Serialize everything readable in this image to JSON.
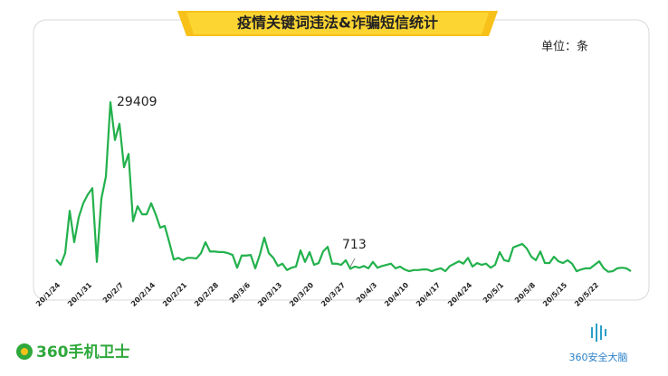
{
  "chart_data": {
    "type": "line",
    "title": "疫情关键词违法&诈骗短信统计",
    "unit": "单位：条",
    "annotations": [
      "29409",
      "713"
    ],
    "logos": [
      "360手机卫士",
      "360安全大脑"
    ],
    "categories": [
      "20/1/24",
      null,
      null,
      null,
      null,
      null,
      null,
      "20/1/31",
      null,
      null,
      null,
      null,
      null,
      null,
      "20/2/7",
      null,
      null,
      null,
      null,
      null,
      null,
      "20/2/14",
      null,
      null,
      null,
      null,
      null,
      null,
      "20/2/21",
      null,
      null,
      null,
      null,
      null,
      null,
      "20/2/28",
      null,
      null,
      null,
      null,
      null,
      null,
      "20/3/6",
      null,
      null,
      null,
      null,
      null,
      null,
      "20/3/13",
      null,
      null,
      null,
      null,
      null,
      null,
      "20/3/20",
      null,
      null,
      null,
      null,
      null,
      null,
      "20/3/27",
      null,
      null,
      null,
      null,
      null,
      null,
      "20/4/3",
      null,
      null,
      null,
      null,
      null,
      null,
      "20/4/10",
      null,
      null,
      null,
      null,
      null,
      null,
      "20/4/17",
      null,
      null,
      null,
      null,
      null,
      null,
      "20/4/24",
      null,
      null,
      null,
      null,
      null,
      null,
      "20/5/1",
      null,
      null,
      null,
      null,
      null,
      null,
      "20/5/8",
      null,
      null,
      null,
      null,
      null,
      null,
      "20/5/15",
      null,
      null,
      null,
      null,
      null,
      null,
      "20/5/22",
      null,
      null,
      null,
      null,
      null,
      null,
      null,
      null
    ],
    "values": [
      2300,
      1400,
      3400,
      10700,
      5300,
      9600,
      12000,
      13500,
      14600,
      1900,
      12800,
      16600,
      29409,
      22900,
      25700,
      18200,
      20500,
      8900,
      11500,
      10100,
      10100,
      12000,
      10100,
      7800,
      8100,
      5300,
      2300,
      2600,
      2200,
      2600,
      2600,
      2500,
      3400,
      5300,
      3700,
      3700,
      3600,
      3600,
      3400,
      3100,
      900,
      3000,
      3000,
      3100,
      800,
      3100,
      6100,
      3400,
      2600,
      1200,
      1600,
      500,
      900,
      1100,
      3900,
      1900,
      3600,
      1400,
      1700,
      3700,
      4500,
      1600,
      1600,
      1400,
      2200,
      713,
      1100,
      900,
      1200,
      800,
      1900,
      900,
      1200,
      1400,
      1600,
      800,
      1100,
      600,
      300,
      500,
      500,
      600,
      600,
      300,
      600,
      800,
      300,
      1200,
      1600,
      2000,
      1600,
      2600,
      1100,
      1700,
      1400,
      1600,
      900,
      1400,
      3600,
      2200,
      2000,
      4400,
      4700,
      5000,
      4200,
      2800,
      2200,
      3700,
      1700,
      1700,
      2800,
      2000,
      1700,
      2200,
      1600,
      300,
      600,
      800,
      800,
      1400,
      2000,
      800,
      200,
      300,
      800,
      900,
      800,
      300
    ],
    "color": "#22b14c",
    "ylim": [
      0,
      33000
    ]
  }
}
